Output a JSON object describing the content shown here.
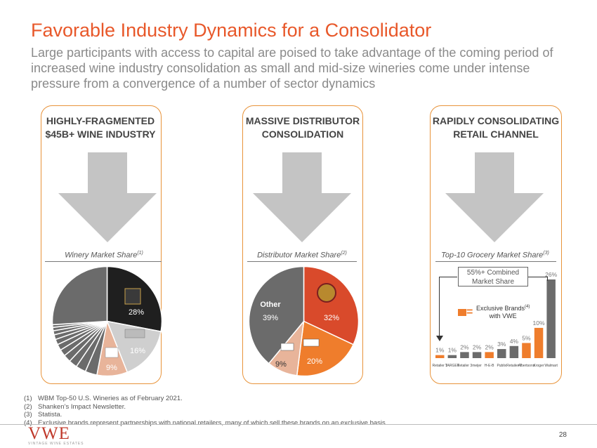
{
  "header": {
    "title": "Favorable Industry Dynamics for a Consolidator",
    "subtitle": "Large participants with access to capital are poised to take advantage of the coming period of increased wine industry consolidation as small and mid-size wineries come under intense pressure from a convergence of a number of sector dynamics"
  },
  "cards": [
    {
      "heading_line1": "HIGHLY-FRAGMENTED",
      "heading_line2": "$45B+ WINE INDUSTRY",
      "section_label": "Winery Market Share",
      "footnote_ref": "(1)"
    },
    {
      "heading_line1": "MASSIVE DISTRIBUTOR",
      "heading_line2": "CONSOLIDATION",
      "section_label": "Distributor Market Share",
      "footnote_ref": "(2)"
    },
    {
      "heading_line1": "RAPIDLY CONSOLIDATING",
      "heading_line2": "RETAIL CHANNEL",
      "section_label": "Top-10 Grocery Market Share",
      "footnote_ref": "(3)"
    }
  ],
  "chart_data": [
    {
      "type": "pie",
      "title": "Winery Market Share",
      "slices": [
        {
          "label": "28%",
          "value": 28,
          "color": "#1f1f1f"
        },
        {
          "label": "16%",
          "value": 16,
          "color": "#cfcfcf"
        },
        {
          "label": "9%",
          "value": 9,
          "color": "#e8b49a"
        },
        {
          "label": "",
          "value": 3.5,
          "color": "#6b6b6b"
        },
        {
          "label": "",
          "value": 3,
          "color": "#6b6b6b"
        },
        {
          "label": "",
          "value": 2.5,
          "color": "#6b6b6b"
        },
        {
          "label": "",
          "value": 2.2,
          "color": "#6b6b6b"
        },
        {
          "label": "",
          "value": 2,
          "color": "#6b6b6b"
        },
        {
          "label": "",
          "value": 1.8,
          "color": "#6b6b6b"
        },
        {
          "label": "",
          "value": 1.6,
          "color": "#6b6b6b"
        },
        {
          "label": "",
          "value": 1.4,
          "color": "#6b6b6b"
        },
        {
          "label": "",
          "value": 1.2,
          "color": "#6b6b6b"
        },
        {
          "label": "",
          "value": 1,
          "color": "#6b6b6b"
        },
        {
          "label": "",
          "value": 0.8,
          "color": "#6b6b6b"
        },
        {
          "label": "",
          "value": 26,
          "color": "#6b6b6b"
        }
      ]
    },
    {
      "type": "pie",
      "title": "Distributor Market Share",
      "slices": [
        {
          "label": "32%",
          "value": 32,
          "color": "#d94a2b"
        },
        {
          "label": "20%",
          "value": 20,
          "color": "#ef7d2c"
        },
        {
          "label": "9%",
          "value": 9,
          "color": "#e8b49a"
        },
        {
          "label": "39%",
          "name": "Other",
          "value": 39,
          "color": "#6b6b6b"
        }
      ]
    },
    {
      "type": "bar",
      "title": "Top-10 Grocery Market Share",
      "categories": [
        "Retailer 1",
        "TARGET",
        "Retailer 3",
        "meijer",
        "H-E-B",
        "Publix",
        "Retailer 7",
        "Albertsons",
        "Kroger",
        "Walmart"
      ],
      "values": [
        1,
        1,
        2,
        2,
        2,
        3,
        4,
        5,
        10,
        26
      ],
      "labels": [
        "1%",
        "1%",
        "2%",
        "2%",
        "2%",
        "3%",
        "4%",
        "5%",
        "10%",
        "26%"
      ],
      "vwe_flags": [
        true,
        false,
        false,
        false,
        true,
        false,
        false,
        true,
        true,
        false
      ],
      "ylim": [
        0,
        26
      ]
    }
  ],
  "grocery": {
    "combined_label_line1": "55%+ Combined",
    "combined_label_line2": "Market Share",
    "legend_line1": "Exclusive Brands",
    "legend_sup": "(4)",
    "legend_line2": "with VWE",
    "legend_equals": "="
  },
  "distributor_other_label": "Other",
  "footnotes": [
    {
      "num": "(1)",
      "text": "WBM Top-50 U.S. Wineries as of February 2021."
    },
    {
      "num": "(2)",
      "text": "Shanken’s Impact Newsletter."
    },
    {
      "num": "(3)",
      "text": "Statista."
    },
    {
      "num": "(4)",
      "text": "Exclusive brands represent partnerships with national retailers, many of which sell these brands on an exclusive basis."
    }
  ],
  "footer": {
    "logo": "VWE",
    "logo_sub": "VINTAGE WINE ESTATES",
    "page_number": "28"
  },
  "colors": {
    "accent": "#e8582a",
    "card_border": "#e8933a",
    "arrow": "#c4c4c4",
    "dark_gray": "#6b6b6b",
    "orange": "#ef7d2c"
  }
}
